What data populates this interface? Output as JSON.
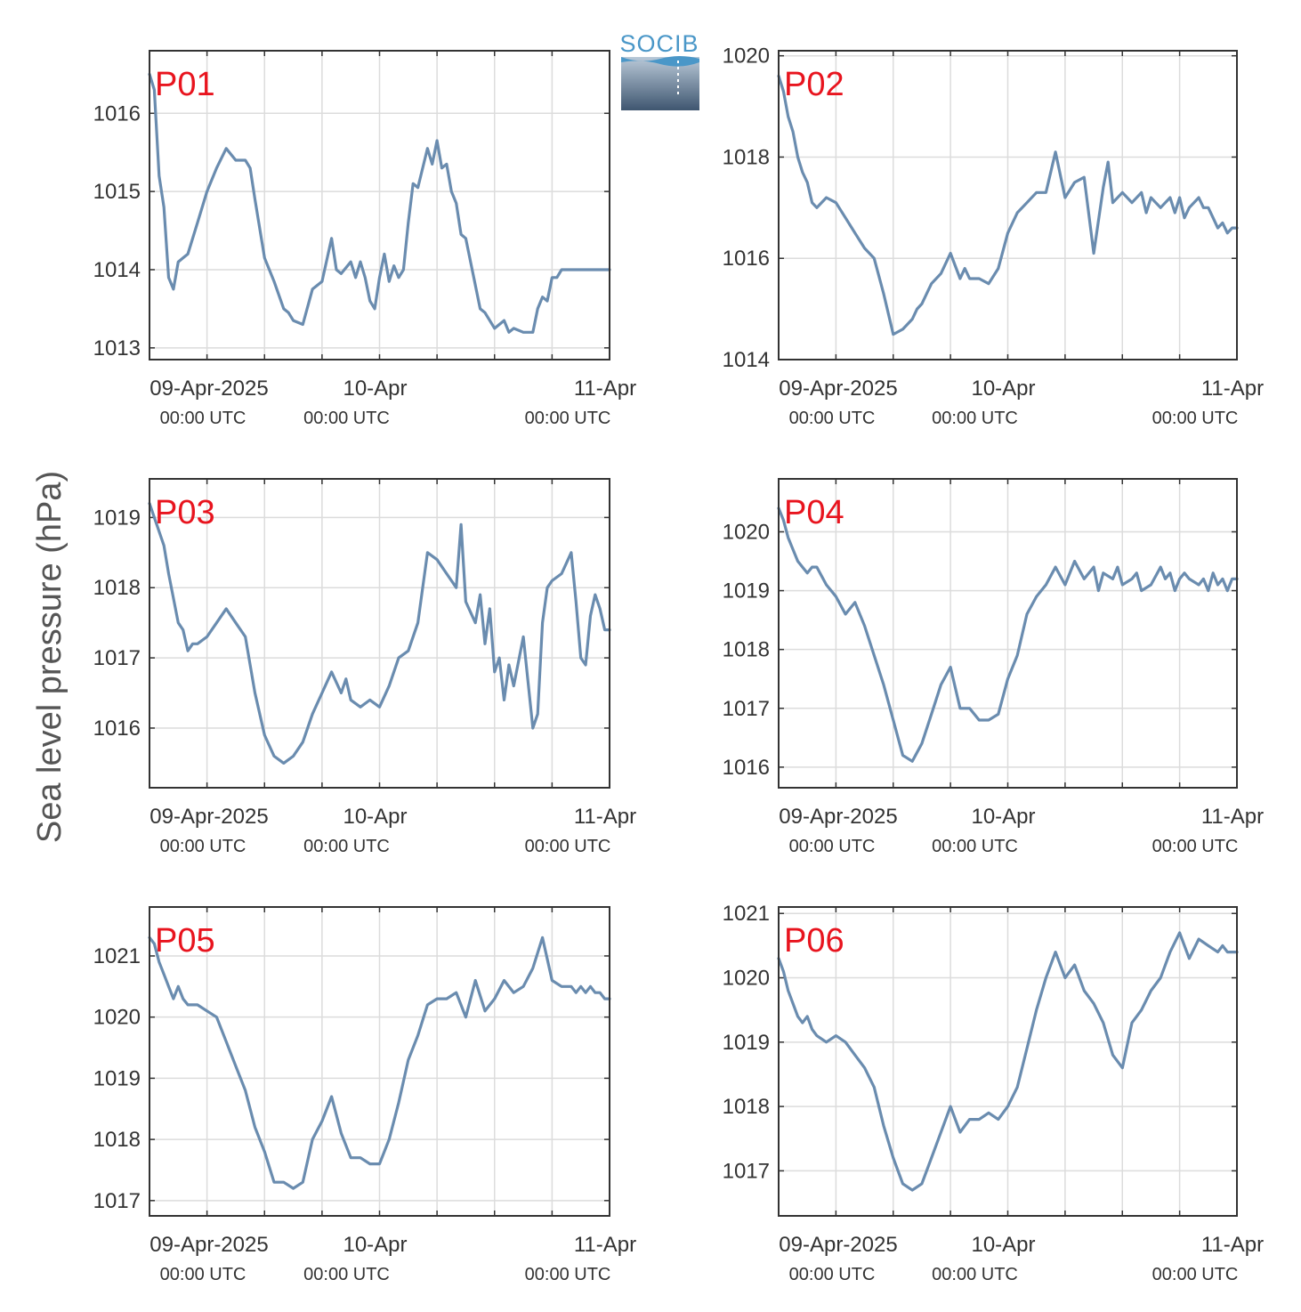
{
  "logo": {
    "text": "SOCIB"
  },
  "chart_data": {
    "type": "line",
    "ylabel": "Sea level pressure (hPa)",
    "x_tick_labels": [
      {
        "date": "09-Apr-2025",
        "time": "00:00 UTC"
      },
      {
        "date": "10-Apr",
        "time": "00:00 UTC"
      },
      {
        "date": "11-Apr",
        "time": "00:00 UTC"
      }
    ],
    "x_range_hours": [
      0,
      48
    ],
    "grid": true,
    "line_color": "#6a8caf",
    "label_color": "#e8141e",
    "panels": [
      {
        "name": "P01",
        "ylim": [
          1012.85,
          1016.8
        ],
        "yticks": [
          "1013",
          "1014",
          "1015",
          "1016"
        ],
        "x": [
          0,
          0.5,
          1,
          1.5,
          2,
          2.5,
          3,
          3.5,
          4,
          5,
          6,
          7,
          8,
          9,
          10,
          10.5,
          11,
          12,
          13,
          14,
          14.5,
          15,
          16,
          17,
          18,
          19,
          19.5,
          20,
          21,
          21.5,
          22,
          22.5,
          23,
          23.5,
          24,
          24.5,
          25,
          25.5,
          26,
          26.5,
          27,
          27.5,
          28,
          29,
          29.5,
          30,
          30.5,
          31,
          31.5,
          32,
          32.5,
          33,
          33.5,
          34,
          34.5,
          35,
          36,
          37,
          37.5,
          38,
          39,
          40,
          40.5,
          41,
          41.5,
          42,
          42.5,
          43,
          44,
          45,
          46,
          47,
          48
        ],
        "y": [
          1016.5,
          1016.3,
          1015.2,
          1014.8,
          1013.9,
          1013.75,
          1014.1,
          1014.15,
          1014.2,
          1014.6,
          1015.0,
          1015.3,
          1015.55,
          1015.4,
          1015.4,
          1015.3,
          1014.9,
          1014.15,
          1013.85,
          1013.5,
          1013.45,
          1013.35,
          1013.3,
          1013.75,
          1013.85,
          1014.4,
          1014.0,
          1013.95,
          1014.1,
          1013.9,
          1014.1,
          1013.9,
          1013.6,
          1013.5,
          1013.9,
          1014.2,
          1013.85,
          1014.05,
          1013.9,
          1014.0,
          1014.6,
          1015.1,
          1015.05,
          1015.55,
          1015.35,
          1015.65,
          1015.3,
          1015.35,
          1015.0,
          1014.85,
          1014.45,
          1014.4,
          1014.1,
          1013.8,
          1013.5,
          1013.45,
          1013.25,
          1013.35,
          1013.2,
          1013.25,
          1013.2,
          1013.2,
          1013.5,
          1013.65,
          1013.6,
          1013.9,
          1013.9,
          1014.0,
          1014.0,
          1014.0,
          1014.0,
          1014.0,
          1014.0
        ]
      },
      {
        "name": "P02",
        "ylim": [
          1014.0,
          1020.1
        ],
        "yticks": [
          "1014",
          "1016",
          "1018",
          "1020"
        ],
        "x": [
          0,
          0.5,
          1,
          1.5,
          2,
          2.5,
          3,
          3.5,
          4,
          5,
          6,
          7,
          8,
          9,
          10,
          11,
          12,
          13,
          14,
          14.5,
          15,
          15.5,
          16,
          17,
          18,
          19,
          19.5,
          20,
          21,
          22,
          23,
          24,
          25,
          26,
          27,
          28,
          29,
          30,
          31,
          32,
          33,
          34,
          34.5,
          35,
          36,
          37,
          38,
          38.5,
          39,
          39.5,
          40,
          40.5,
          41,
          41.5,
          42,
          42.5,
          43,
          44,
          44.5,
          45,
          45.5,
          46,
          46.5,
          47,
          47.5,
          48
        ],
        "y": [
          1019.6,
          1019.3,
          1018.8,
          1018.5,
          1018.0,
          1017.7,
          1017.5,
          1017.1,
          1017.0,
          1017.2,
          1017.1,
          1016.8,
          1016.5,
          1016.2,
          1016.0,
          1015.3,
          1014.5,
          1014.6,
          1014.8,
          1015.0,
          1015.1,
          1015.3,
          1015.5,
          1015.7,
          1016.1,
          1015.6,
          1015.8,
          1015.6,
          1015.6,
          1015.5,
          1015.8,
          1016.5,
          1016.9,
          1017.1,
          1017.3,
          1017.3,
          1018.1,
          1017.2,
          1017.5,
          1017.6,
          1016.1,
          1017.4,
          1017.9,
          1017.1,
          1017.3,
          1017.1,
          1017.3,
          1016.9,
          1017.2,
          1017.1,
          1017.0,
          1017.1,
          1017.2,
          1016.9,
          1017.2,
          1016.8,
          1017.0,
          1017.2,
          1017.0,
          1017.0,
          1016.8,
          1016.6,
          1016.7,
          1016.5,
          1016.6,
          1016.6
        ]
      },
      {
        "name": "P03",
        "ylim": [
          1015.15,
          1019.55
        ],
        "yticks": [
          "1016",
          "1017",
          "1018",
          "1019"
        ],
        "x": [
          0,
          0.5,
          1,
          1.5,
          2,
          3,
          3.5,
          4,
          4.5,
          5,
          6,
          7,
          8,
          9,
          10,
          11,
          12,
          13,
          14,
          15,
          16,
          17,
          18,
          19,
          20,
          20.5,
          21,
          22,
          23,
          24,
          25,
          26,
          27,
          28,
          29,
          30,
          31,
          32,
          32.5,
          33,
          34,
          34.5,
          35,
          35.5,
          36,
          36.5,
          37,
          37.5,
          38,
          39,
          40,
          40.5,
          41,
          41.5,
          42,
          43,
          44,
          44.5,
          45,
          45.5,
          46,
          46.5,
          47,
          47.5,
          48
        ],
        "y": [
          1019.2,
          1019.0,
          1018.8,
          1018.6,
          1018.2,
          1017.5,
          1017.4,
          1017.1,
          1017.2,
          1017.2,
          1017.3,
          1017.5,
          1017.7,
          1017.5,
          1017.3,
          1016.5,
          1015.9,
          1015.6,
          1015.5,
          1015.6,
          1015.8,
          1016.2,
          1016.5,
          1016.8,
          1016.5,
          1016.7,
          1016.4,
          1016.3,
          1016.4,
          1016.3,
          1016.6,
          1017.0,
          1017.1,
          1017.5,
          1018.5,
          1018.4,
          1018.2,
          1018.0,
          1018.9,
          1017.8,
          1017.5,
          1017.9,
          1017.2,
          1017.7,
          1016.8,
          1017.0,
          1016.4,
          1016.9,
          1016.6,
          1017.3,
          1016.0,
          1016.2,
          1017.5,
          1018.0,
          1018.1,
          1018.2,
          1018.5,
          1017.8,
          1017.0,
          1016.9,
          1017.6,
          1017.9,
          1017.7,
          1017.4,
          1017.4
        ]
      },
      {
        "name": "P04",
        "ylim": [
          1015.65,
          1020.9
        ],
        "yticks": [
          "1016",
          "1017",
          "1018",
          "1019",
          "1020"
        ],
        "x": [
          0,
          0.5,
          1,
          1.5,
          2,
          2.5,
          3,
          3.5,
          4,
          5,
          6,
          7,
          8,
          9,
          10,
          11,
          12,
          13,
          14,
          15,
          16,
          17,
          18,
          19,
          20,
          21,
          22,
          23,
          24,
          25,
          26,
          27,
          28,
          29,
          30,
          31,
          32,
          33,
          33.5,
          34,
          35,
          35.5,
          36,
          37,
          37.5,
          38,
          39,
          40,
          40.5,
          41,
          41.5,
          42,
          42.5,
          43,
          44,
          44.5,
          45,
          45.5,
          46,
          46.5,
          47,
          47.5,
          48
        ],
        "y": [
          1020.4,
          1020.2,
          1019.9,
          1019.7,
          1019.5,
          1019.4,
          1019.3,
          1019.4,
          1019.4,
          1019.1,
          1018.9,
          1018.6,
          1018.8,
          1018.4,
          1017.9,
          1017.4,
          1016.8,
          1016.2,
          1016.1,
          1016.4,
          1016.9,
          1017.4,
          1017.7,
          1017.0,
          1017.0,
          1016.8,
          1016.8,
          1016.9,
          1017.5,
          1017.9,
          1018.6,
          1018.9,
          1019.1,
          1019.4,
          1019.1,
          1019.5,
          1019.2,
          1019.4,
          1019.0,
          1019.3,
          1019.2,
          1019.4,
          1019.1,
          1019.2,
          1019.3,
          1019.0,
          1019.1,
          1019.4,
          1019.2,
          1019.3,
          1019.0,
          1019.2,
          1019.3,
          1019.2,
          1019.1,
          1019.2,
          1019.0,
          1019.3,
          1019.1,
          1019.2,
          1019.0,
          1019.2,
          1019.2
        ]
      },
      {
        "name": "P05",
        "ylim": [
          1016.75,
          1021.8
        ],
        "yticks": [
          "1017",
          "1018",
          "1019",
          "1020",
          "1021"
        ],
        "x": [
          0,
          0.5,
          1,
          1.5,
          2,
          2.5,
          3,
          3.5,
          4,
          5,
          6,
          7,
          8,
          9,
          10,
          11,
          12,
          13,
          14,
          15,
          16,
          17,
          18,
          19,
          20,
          21,
          22,
          23,
          24,
          25,
          26,
          27,
          28,
          29,
          30,
          31,
          32,
          33,
          34,
          35,
          36,
          37,
          38,
          39,
          40,
          41,
          42,
          43,
          44,
          44.5,
          45,
          45.5,
          46,
          46.5,
          47,
          47.5,
          48
        ],
        "y": [
          1021.3,
          1021.2,
          1020.9,
          1020.7,
          1020.5,
          1020.3,
          1020.5,
          1020.3,
          1020.2,
          1020.2,
          1020.1,
          1020.0,
          1019.6,
          1019.2,
          1018.8,
          1018.2,
          1017.8,
          1017.3,
          1017.3,
          1017.2,
          1017.3,
          1018.0,
          1018.3,
          1018.7,
          1018.1,
          1017.7,
          1017.7,
          1017.6,
          1017.6,
          1018.0,
          1018.6,
          1019.3,
          1019.7,
          1020.2,
          1020.3,
          1020.3,
          1020.4,
          1020.0,
          1020.6,
          1020.1,
          1020.3,
          1020.6,
          1020.4,
          1020.5,
          1020.8,
          1021.3,
          1020.6,
          1020.5,
          1020.5,
          1020.4,
          1020.5,
          1020.4,
          1020.5,
          1020.4,
          1020.4,
          1020.3,
          1020.3
        ]
      },
      {
        "name": "P06",
        "ylim": [
          1016.3,
          1021.1
        ],
        "yticks": [
          "1017",
          "1018",
          "1019",
          "1020",
          "1021"
        ],
        "x": [
          0,
          0.5,
          1,
          1.5,
          2,
          2.5,
          3,
          3.5,
          4,
          5,
          6,
          7,
          8,
          9,
          10,
          11,
          12,
          13,
          14,
          15,
          16,
          17,
          18,
          19,
          20,
          21,
          22,
          23,
          24,
          25,
          26,
          27,
          28,
          29,
          30,
          31,
          32,
          33,
          34,
          35,
          36,
          37,
          38,
          39,
          40,
          41,
          42,
          43,
          44,
          45,
          46,
          46.5,
          47,
          47.5,
          48
        ],
        "y": [
          1020.3,
          1020.1,
          1019.8,
          1019.6,
          1019.4,
          1019.3,
          1019.4,
          1019.2,
          1019.1,
          1019.0,
          1019.1,
          1019.0,
          1018.8,
          1018.6,
          1018.3,
          1017.7,
          1017.2,
          1016.8,
          1016.7,
          1016.8,
          1017.2,
          1017.6,
          1018.0,
          1017.6,
          1017.8,
          1017.8,
          1017.9,
          1017.8,
          1018.0,
          1018.3,
          1018.9,
          1019.5,
          1020.0,
          1020.4,
          1020.0,
          1020.2,
          1019.8,
          1019.6,
          1019.3,
          1018.8,
          1018.6,
          1019.3,
          1019.5,
          1019.8,
          1020.0,
          1020.4,
          1020.7,
          1020.3,
          1020.6,
          1020.5,
          1020.4,
          1020.5,
          1020.4,
          1020.4,
          1020.4
        ]
      }
    ]
  }
}
